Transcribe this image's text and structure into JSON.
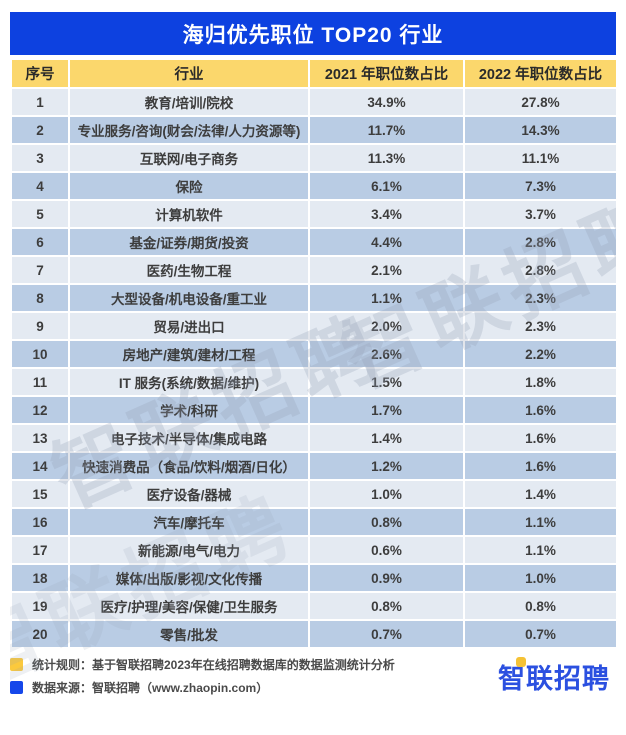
{
  "title": "海归优先职位 TOP20 行业",
  "table": {
    "headers": [
      "序号",
      "行业",
      "2021 年职位数占比",
      "2022 年职位数占比"
    ],
    "rows": [
      [
        "1",
        "教育/培训/院校",
        "34.9%",
        "27.8%"
      ],
      [
        "2",
        "专业服务/咨询(财会/法律/人力资源等)",
        "11.7%",
        "14.3%"
      ],
      [
        "3",
        "互联网/电子商务",
        "11.3%",
        "11.1%"
      ],
      [
        "4",
        "保险",
        "6.1%",
        "7.3%"
      ],
      [
        "5",
        "计算机软件",
        "3.4%",
        "3.7%"
      ],
      [
        "6",
        "基金/证券/期货/投资",
        "4.4%",
        "2.8%"
      ],
      [
        "7",
        "医药/生物工程",
        "2.1%",
        "2.8%"
      ],
      [
        "8",
        "大型设备/机电设备/重工业",
        "1.1%",
        "2.3%"
      ],
      [
        "9",
        "贸易/进出口",
        "2.0%",
        "2.3%"
      ],
      [
        "10",
        "房地产/建筑/建材/工程",
        "2.6%",
        "2.2%"
      ],
      [
        "11",
        "IT 服务(系统/数据/维护)",
        "1.5%",
        "1.8%"
      ],
      [
        "12",
        "学术/科研",
        "1.7%",
        "1.6%"
      ],
      [
        "13",
        "电子技术/半导体/集成电路",
        "1.4%",
        "1.6%"
      ],
      [
        "14",
        "快速消费品（食品/饮料/烟酒/日化）",
        "1.2%",
        "1.6%"
      ],
      [
        "15",
        "医疗设备/器械",
        "1.0%",
        "1.4%"
      ],
      [
        "16",
        "汽车/摩托车",
        "0.8%",
        "1.1%"
      ],
      [
        "17",
        "新能源/电气/电力",
        "0.6%",
        "1.1%"
      ],
      [
        "18",
        "媒体/出版/影视/文化传播",
        "0.9%",
        "1.0%"
      ],
      [
        "19",
        "医疗/护理/美容/保健/卫生服务",
        "0.8%",
        "0.8%"
      ],
      [
        "20",
        "零售/批发",
        "0.7%",
        "0.7%"
      ]
    ]
  },
  "watermark": {
    "text": "智联招聘"
  },
  "footer": {
    "note_stat_rule": "统计规则：基于智联招聘2023年在线招聘数据库的数据监测统计分析",
    "note_data_source": "数据来源：智联招聘（www.zhaopin.com）",
    "logo_text": "智联招聘"
  },
  "colors": {
    "title_bar_blue": "#0d41e0",
    "header_yellow": "#fbd76c",
    "row_light": "#e4eaf2",
    "row_dark": "#b9cce4",
    "legend_yellow": "#fbc93d",
    "legend_blue": "#1547ea",
    "logo_blue": "#2b50e0",
    "logo_dot_yellow": "#f5c235"
  },
  "chart_data": {
    "type": "table",
    "title": "海归优先职位 TOP20 行业",
    "categories": [
      "教育/培训/院校",
      "专业服务/咨询(财会/法律/人力资源等)",
      "互联网/电子商务",
      "保险",
      "计算机软件",
      "基金/证券/期货/投资",
      "医药/生物工程",
      "大型设备/机电设备/重工业",
      "贸易/进出口",
      "房地产/建筑/建材/工程",
      "IT 服务(系统/数据/维护)",
      "学术/科研",
      "电子技术/半导体/集成电路",
      "快速消费品（食品/饮料/烟酒/日化）",
      "医疗设备/器械",
      "汽车/摩托车",
      "新能源/电气/电力",
      "媒体/出版/影视/文化传播",
      "医疗/护理/美容/保健/卫生服务",
      "零售/批发"
    ],
    "series": [
      {
        "name": "2021 年职位数占比",
        "unit": "%",
        "values": [
          34.9,
          11.7,
          11.3,
          6.1,
          3.4,
          4.4,
          2.1,
          1.1,
          2.0,
          2.6,
          1.5,
          1.7,
          1.4,
          1.2,
          1.0,
          0.8,
          0.6,
          0.9,
          0.8,
          0.7
        ]
      },
      {
        "name": "2022 年职位数占比",
        "unit": "%",
        "values": [
          27.8,
          14.3,
          11.1,
          7.3,
          3.7,
          2.8,
          2.8,
          2.3,
          2.3,
          2.2,
          1.8,
          1.6,
          1.6,
          1.6,
          1.4,
          1.1,
          1.1,
          1.0,
          0.8,
          0.7
        ]
      }
    ]
  }
}
